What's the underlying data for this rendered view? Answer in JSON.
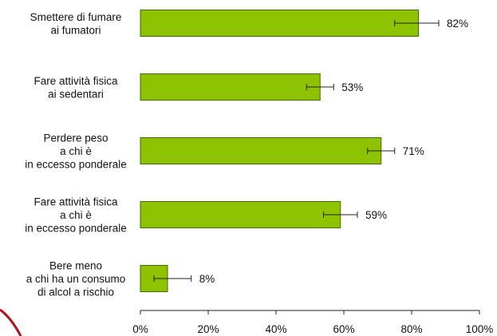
{
  "chart_data": {
    "type": "bar",
    "orientation": "horizontal",
    "categories": [
      [
        "Smettere di fumare",
        "ai fumatori"
      ],
      [
        "Fare attività fisica",
        "ai sedentari"
      ],
      [
        "Perdere peso",
        "a chi è",
        "in eccesso ponderale"
      ],
      [
        "Fare attività fisica",
        "a chi è",
        "in eccesso ponderale"
      ],
      [
        "Bere meno",
        "a chi ha un consumo",
        "di alcol a rischio"
      ]
    ],
    "values": [
      82,
      53,
      71,
      59,
      8
    ],
    "error_low": [
      75,
      49,
      67,
      54,
      4
    ],
    "error_high": [
      88,
      57,
      75,
      64,
      15
    ],
    "value_labels": [
      "82%",
      "53%",
      "71%",
      "59%",
      "8%"
    ],
    "xlim": [
      0,
      100
    ],
    "x_ticks": [
      0,
      20,
      40,
      60,
      80,
      100
    ],
    "x_tick_labels": [
      "0%",
      "20%",
      "40%",
      "60%",
      "80%",
      "100%"
    ],
    "bar_color": "#8dc300",
    "bar_edge_color": "#4a6a00",
    "grid": false,
    "legend": "none"
  }
}
